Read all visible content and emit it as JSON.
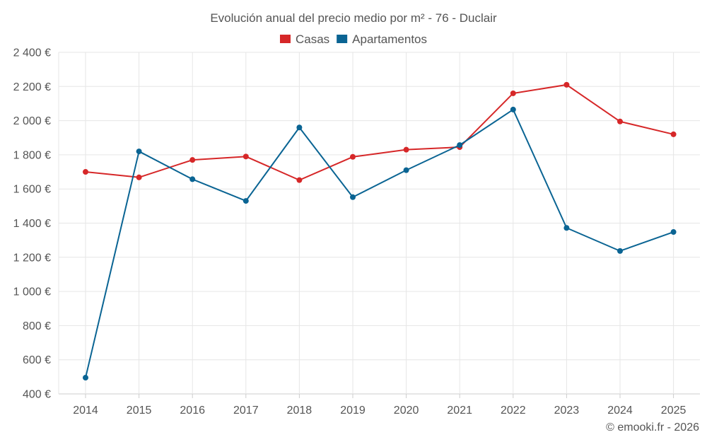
{
  "chart_data": {
    "type": "line",
    "title": "Evolución anual del precio medio por m² - 76 - Duclair",
    "categories": [
      "2014",
      "2015",
      "2016",
      "2017",
      "2018",
      "2019",
      "2020",
      "2021",
      "2022",
      "2023",
      "2024",
      "2025"
    ],
    "series": [
      {
        "name": "Casas",
        "color": "#d62728",
        "values": [
          1700,
          1668,
          1770,
          1790,
          1652,
          1788,
          1830,
          1845,
          2160,
          2210,
          1995,
          1920
        ]
      },
      {
        "name": "Apartamentos",
        "color": "#0a6493",
        "values": [
          495,
          1820,
          1657,
          1530,
          1960,
          1552,
          1710,
          1857,
          2065,
          1372,
          1237,
          1348
        ]
      }
    ],
    "ylim": [
      400,
      2400
    ],
    "yticks": [
      400,
      600,
      800,
      1000,
      1200,
      1400,
      1600,
      1800,
      2000,
      2200,
      2400
    ],
    "ytick_labels": [
      "400 €",
      "600 €",
      "800 €",
      "1 000 €",
      "1 200 €",
      "1 400 €",
      "1 600 €",
      "1 800 €",
      "2 000 €",
      "2 200 €",
      "2 400 €"
    ],
    "xlabel": "",
    "ylabel": "",
    "grid": true,
    "legend_position": "top-center"
  },
  "credit": "© emooki.fr - 2026"
}
